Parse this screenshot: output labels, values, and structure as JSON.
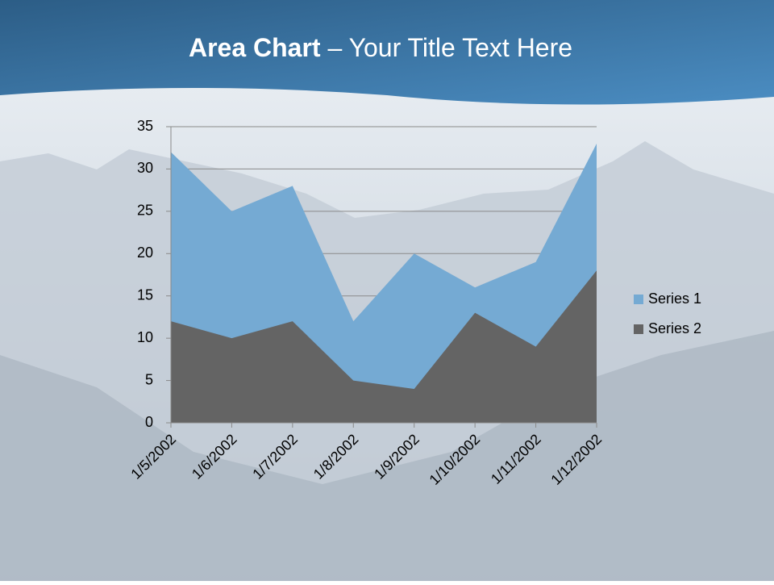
{
  "chart_data": {
    "type": "area",
    "title": {
      "emphasis": "Area Chart",
      "text": " – Your Title Text Here"
    },
    "categories": [
      "1/5/2002",
      "1/6/2002",
      "1/7/2002",
      "1/8/2002",
      "1/9/2002",
      "1/10/2002",
      "1/11/2002",
      "1/12/2002"
    ],
    "series": [
      {
        "name": "Series 1",
        "color": "#75aad3",
        "values": [
          32,
          25,
          28,
          12,
          20,
          16,
          19,
          33
        ]
      },
      {
        "name": "Series 2",
        "color": "#646464",
        "values": [
          12,
          10,
          12,
          5,
          4,
          13,
          9,
          18
        ]
      }
    ],
    "ylim": [
      0,
      35
    ],
    "yticks": [
      0,
      5,
      10,
      15,
      20,
      25,
      30,
      35
    ],
    "grid": true,
    "legend": "right"
  }
}
